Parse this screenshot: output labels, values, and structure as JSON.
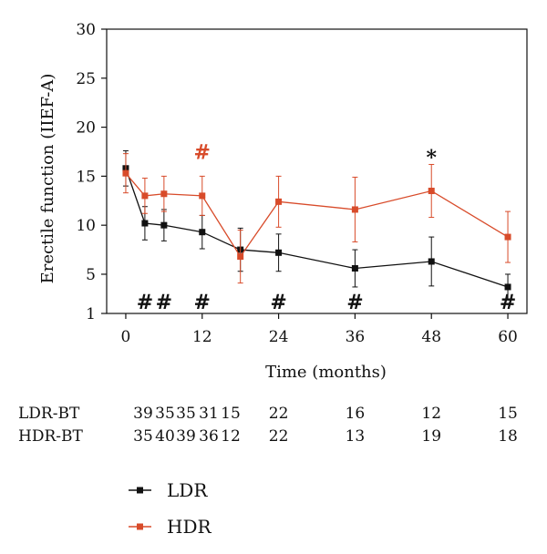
{
  "chart_data": {
    "type": "line",
    "title": "",
    "xlabel": "Time (months)",
    "ylabel": "Erectile function (IIEF-A)",
    "xlim": [
      -3,
      63
    ],
    "ylim": [
      1,
      30
    ],
    "x_ticks": [
      0,
      12,
      24,
      36,
      48,
      60
    ],
    "y_ticks": [
      1,
      5,
      10,
      15,
      20,
      25,
      30
    ],
    "grid": false,
    "legend_position": "bottom-left",
    "series": [
      {
        "name": "LDR",
        "color": "#111111",
        "x": [
          0,
          3,
          6,
          12,
          18,
          24,
          36,
          48,
          60
        ],
        "y": [
          15.8,
          10.2,
          10.0,
          9.3,
          7.5,
          7.2,
          5.6,
          6.3,
          3.7
        ],
        "err": [
          1.8,
          1.7,
          1.6,
          1.7,
          2.2,
          1.9,
          1.9,
          2.5,
          1.3
        ]
      },
      {
        "name": "HDR",
        "color": "#d84b2a",
        "x": [
          0,
          3,
          6,
          12,
          18,
          24,
          36,
          48,
          60
        ],
        "y": [
          15.3,
          13.0,
          13.2,
          13.0,
          6.8,
          12.4,
          11.6,
          13.5,
          8.8
        ],
        "err": [
          2.0,
          1.8,
          1.8,
          2.0,
          2.7,
          2.6,
          3.3,
          2.7,
          2.6
        ]
      }
    ],
    "annotations": [
      {
        "text": "#",
        "x": 3,
        "y": 2.2,
        "color": "#111111"
      },
      {
        "text": "#",
        "x": 6,
        "y": 2.2,
        "color": "#111111"
      },
      {
        "text": "#",
        "x": 12,
        "y": 2.2,
        "color": "#111111"
      },
      {
        "text": "#",
        "x": 24,
        "y": 2.2,
        "color": "#111111"
      },
      {
        "text": "#",
        "x": 36,
        "y": 2.2,
        "color": "#111111"
      },
      {
        "text": "#",
        "x": 60,
        "y": 2.2,
        "color": "#111111"
      },
      {
        "text": "#",
        "x": 12,
        "y": 17.5,
        "color": "#d84b2a"
      },
      {
        "text": "*",
        "x": 48,
        "y": 17.5,
        "color": "#111111"
      }
    ],
    "at_risk_table": {
      "columns": [
        0,
        3,
        6,
        12,
        18,
        24,
        36,
        48,
        60
      ],
      "rows": [
        {
          "label": "LDR-BT",
          "values": [
            "39",
            "35",
            "35",
            "31",
            "15",
            "22",
            "16",
            "12",
            "15"
          ]
        },
        {
          "label": "HDR-BT",
          "values": [
            "35",
            "40",
            "39",
            "36",
            "12",
            "22",
            "13",
            "19",
            "18"
          ]
        }
      ]
    }
  }
}
